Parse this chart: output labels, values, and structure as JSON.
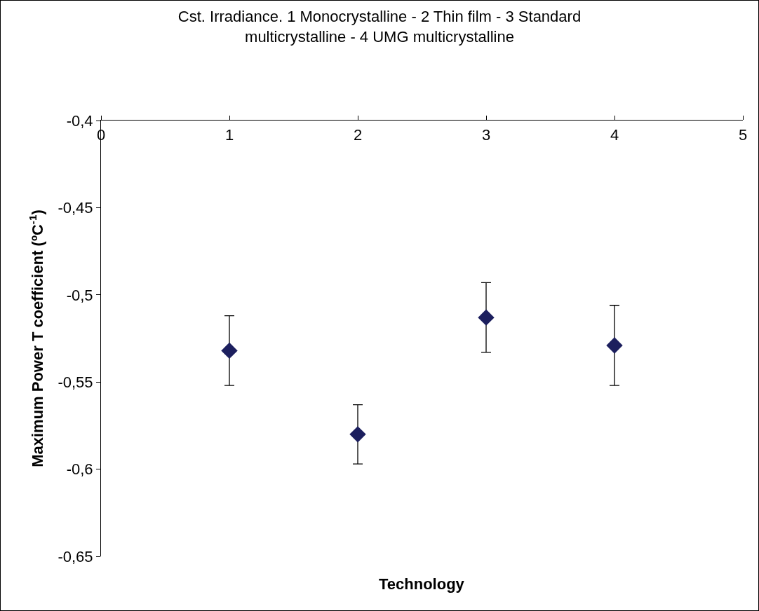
{
  "chart_data": {
    "type": "scatter",
    "title": "Cst. Irradiance. 1 Monocrystalline - 2 Thin film - 3 Standard multicrystalline - 4 UMG multicrystalline",
    "xlabel": "Technology",
    "ylabel": "Maximum Power T coefficient (ºC$^{-1}$)",
    "x": [
      1,
      2,
      3,
      4
    ],
    "values": [
      -0.532,
      -0.58,
      -0.513,
      -0.529
    ],
    "errors": [
      0.02,
      0.017,
      0.02,
      0.023
    ],
    "color": "#1c1f5e",
    "marker": "diamond",
    "xlim": [
      0,
      5
    ],
    "xticks": [
      0,
      1,
      2,
      3,
      4,
      5
    ],
    "ylim": [
      -0.65,
      -0.4
    ],
    "yticks": [
      {
        "value": -0.65,
        "label": "-0,65"
      },
      {
        "value": -0.6,
        "label": "-0,6"
      },
      {
        "value": -0.55,
        "label": "-0,55"
      },
      {
        "value": -0.5,
        "label": "-0,5"
      },
      {
        "value": -0.45,
        "label": "-0,45"
      },
      {
        "value": -0.4,
        "label": "-0,4"
      }
    ]
  }
}
